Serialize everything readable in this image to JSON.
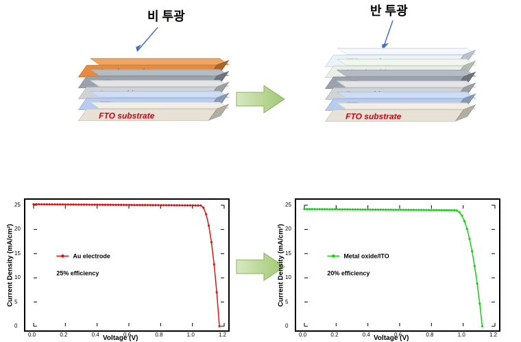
{
  "titles": {
    "left": "비 투광",
    "right": "반 투광"
  },
  "stack_left": {
    "layers": [
      {
        "label": "Au electrode",
        "face": "#e88a3b",
        "top": "#f0a560",
        "side": "#c87430",
        "text": "#0020b0"
      },
      {
        "label": "HTL",
        "face": "#9aa3ad",
        "top": "#b4bbc3",
        "side": "#82898f",
        "text": "#c00010"
      },
      {
        "label": "Perovskite",
        "face": "#d0d3d6",
        "top": "#e2e4e6",
        "side": "#b8bbbe",
        "text": "#c00010"
      },
      {
        "label": "ETL",
        "face": "#b6ccf0",
        "top": "#cdddf6",
        "side": "#9fb6d8",
        "text": "#c00010"
      },
      {
        "label": "FTO substrate",
        "face": "#e8e2d6",
        "top": "#f2eee5",
        "side": "#d2ccc0",
        "text": "#c00010"
      }
    ]
  },
  "stack_right": {
    "layers": [
      {
        "label": "ITO coating",
        "face": "#eaf2fa",
        "top": "#f4f8fc",
        "side": "#d6e4f0",
        "text": "#2060d0"
      },
      {
        "label": "Metal oxide",
        "face": "#e8f0e6",
        "top": "#f0f6ee",
        "side": "#d4dcd2",
        "text": "#6a9a3a"
      },
      {
        "label": "HTL",
        "face": "#9aa3ad",
        "top": "#b4bbc3",
        "side": "#82898f",
        "text": "#c00010"
      },
      {
        "label": "Perovskite",
        "face": "#d0d3d6",
        "top": "#e2e4e6",
        "side": "#b8bbbe",
        "text": "#c00010"
      },
      {
        "label": "ETL",
        "face": "#b6ccf0",
        "top": "#cdddf6",
        "side": "#9fb6d8",
        "text": "#c00010"
      },
      {
        "label": "FTO substrate",
        "face": "#e8e2d6",
        "top": "#f2eee5",
        "side": "#d2ccc0",
        "text": "#c00010"
      }
    ]
  },
  "chart_left": {
    "type": "line",
    "legend_label": "Au electrode",
    "efficiency": "25% efficiency",
    "xlabel": "Voltage (V)",
    "ylabel": "Current Density (mA/cm²)",
    "xlim": [
      0.0,
      1.2
    ],
    "ylim": [
      0,
      25
    ],
    "xticks": [
      0.0,
      0.2,
      0.4,
      0.6,
      0.8,
      1.0,
      1.2
    ],
    "yticks": [
      0,
      5,
      10,
      15,
      20,
      25
    ],
    "series_color": "#e01010",
    "marker": "circle",
    "line_width": 1.5,
    "voc": 1.17,
    "jsc": 25.2,
    "knee_v": 1.05
  },
  "chart_right": {
    "type": "line",
    "legend_label": "Metal oxide/ITO",
    "efficiency": "20% efficiency",
    "xlabel": "Voltage (V)",
    "ylabel": "Current Density (mA/cm²)",
    "xlim": [
      0.0,
      1.2
    ],
    "ylim": [
      0,
      25
    ],
    "xticks": [
      0.0,
      0.2,
      0.4,
      0.6,
      0.8,
      1.0,
      1.2
    ],
    "yticks": [
      0,
      5,
      10,
      15,
      20,
      25
    ],
    "series_color": "#10d010",
    "marker": "circle",
    "line_width": 1.5,
    "voc": 1.12,
    "jsc": 24.2,
    "knee_v": 0.95
  },
  "arrow_color": "#a8d080",
  "pointer_color": "#4070c0"
}
